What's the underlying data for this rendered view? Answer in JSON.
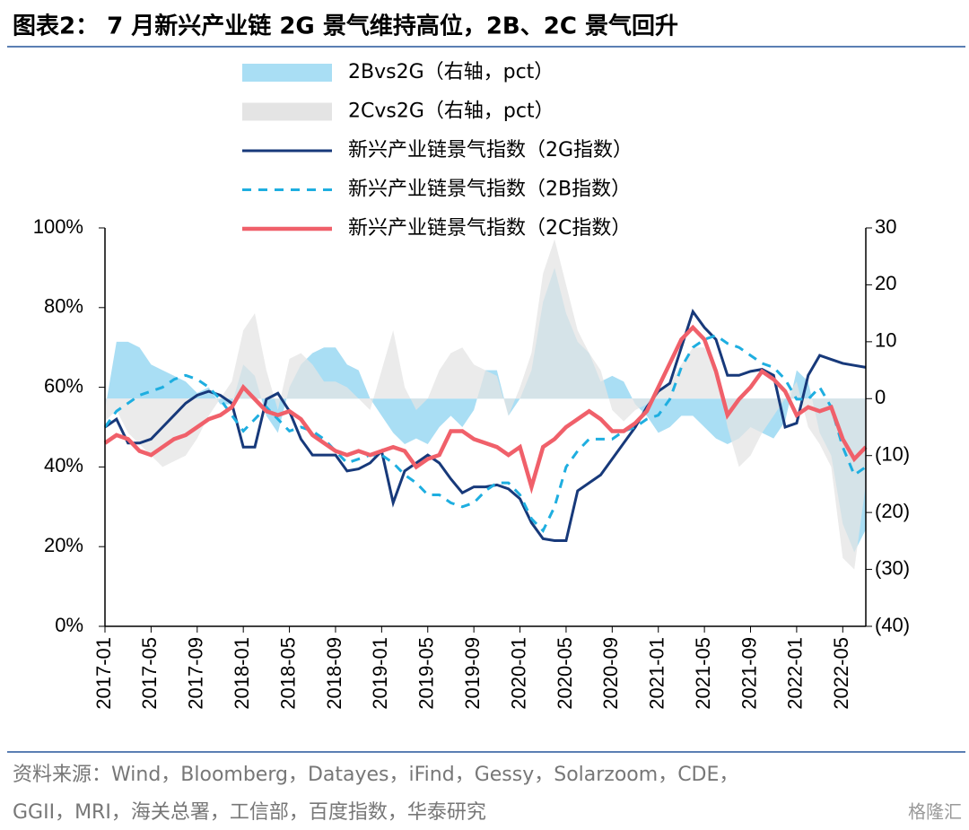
{
  "chart_data": {
    "type": "combo",
    "title": "图表2：  7 月新兴产业链 2G 景气维持高位，2B、2C 景气回升",
    "source": [
      "资料来源：Wind，Bloomberg，Datayes，iFind，Gessy，Solarzoom，CDE，",
      "GGII，MRI，海关总署，工信部，百度指数，华泰研究"
    ],
    "watermark": "格隆汇",
    "categories": [
      "2017-01",
      null,
      null,
      null,
      "2017-05",
      null,
      null,
      null,
      "2017-09",
      null,
      null,
      null,
      "2018-01",
      null,
      null,
      null,
      "2018-05",
      null,
      null,
      null,
      "2018-09",
      null,
      null,
      null,
      "2019-01",
      null,
      null,
      null,
      "2019-05",
      null,
      null,
      null,
      "2019-09",
      null,
      null,
      null,
      "2020-01",
      null,
      null,
      null,
      "2020-05",
      null,
      null,
      null,
      "2020-09",
      null,
      null,
      null,
      "2021-01",
      null,
      null,
      null,
      "2021-05",
      null,
      null,
      null,
      "2021-09",
      null,
      null,
      null,
      "2022-01",
      null,
      null,
      null,
      "2022-05",
      null,
      null
    ],
    "ylim": [
      0,
      100
    ],
    "yticks": [
      {
        "value": 0,
        "label": "0%"
      },
      {
        "value": 20,
        "label": "20%"
      },
      {
        "value": 40,
        "label": "40%"
      },
      {
        "value": 60,
        "label": "60%"
      },
      {
        "value": 80,
        "label": "80%"
      },
      {
        "value": 100,
        "label": "100%"
      }
    ],
    "y2lim": [
      -40,
      30
    ],
    "y2ticks": [
      {
        "value": -40,
        "label": "(40)"
      },
      {
        "value": -30,
        "label": "(30)"
      },
      {
        "value": -20,
        "label": "(20)"
      },
      {
        "value": -10,
        "label": "(10)"
      },
      0,
      10,
      20,
      30
    ],
    "series": [
      {
        "name": "2Bvs2G（右轴，pct）",
        "style": "area",
        "axis": "y2",
        "color": "#a9def4",
        "values": [
          -2,
          10,
          10,
          9,
          6,
          5,
          4,
          3,
          1,
          2,
          -1,
          -1,
          6,
          4,
          -3,
          -6,
          2,
          6,
          8,
          9,
          9,
          6,
          5,
          0,
          -3,
          -6,
          -8,
          -7,
          -8,
          -5,
          -3,
          -5,
          -2,
          5,
          5,
          -3,
          0,
          5,
          17,
          23,
          15,
          10,
          8,
          3,
          4,
          3,
          -1,
          -3,
          -6,
          -5,
          -3,
          -3,
          -5,
          -7,
          -8,
          -7,
          -5,
          -6,
          -7,
          -4,
          5,
          3,
          -6,
          -10,
          -22,
          -27,
          -23
        ]
      },
      {
        "name": "2Cvs2G（右轴，pct）",
        "style": "area",
        "axis": "y2",
        "color": "#e4e4e4",
        "values": [
          -4,
          -2,
          -6,
          -8,
          -10,
          -12,
          -11,
          -10,
          -7,
          -3,
          0,
          3,
          12,
          15,
          5,
          -2,
          7,
          8,
          6,
          3,
          3,
          2,
          0,
          -2,
          5,
          12,
          2,
          -2,
          0,
          5,
          8,
          9,
          6,
          5,
          4,
          -3,
          2,
          8,
          22,
          28,
          20,
          12,
          8,
          5,
          -2,
          -4,
          -2,
          -1,
          1,
          3,
          6,
          9,
          9,
          5,
          -5,
          -12,
          -10,
          -6,
          -3,
          0,
          3,
          -5,
          -8,
          -12,
          -28,
          -30,
          -15
        ]
      },
      {
        "name": "新兴产业链景气指数（2G指数）",
        "style": "line",
        "color": "#17397a",
        "values": [
          50,
          52,
          46,
          46,
          47,
          50,
          53,
          56,
          58,
          59,
          58,
          56,
          45,
          45,
          57,
          58.5,
          54,
          47,
          43,
          43,
          43,
          39,
          39.5,
          41,
          44,
          31,
          39,
          41,
          43,
          41,
          37,
          33.5,
          35,
          35,
          35.5,
          34.5,
          32,
          26,
          22,
          21.5,
          21.5,
          34,
          36,
          38,
          42,
          46,
          50,
          55,
          59,
          61,
          70,
          79,
          75,
          72,
          63,
          63,
          64,
          64.5,
          63,
          50,
          51,
          63,
          68,
          67,
          66,
          65.5,
          65
        ]
      },
      {
        "name": "新兴产业链景气指数（2B指数）",
        "style": "line",
        "dash": true,
        "color": "#1eaee0",
        "values": [
          50,
          54,
          56,
          58,
          59,
          60,
          62,
          63,
          62,
          60,
          57,
          53,
          49,
          52,
          55,
          52,
          49,
          50,
          49,
          47,
          44,
          41,
          42,
          43,
          43,
          41,
          38,
          36,
          33,
          33,
          31,
          30,
          31,
          34,
          36,
          36,
          33,
          27,
          24,
          30,
          40,
          44,
          47,
          47,
          47,
          49,
          50,
          52,
          53,
          57,
          65,
          70,
          72,
          73,
          71,
          70,
          68,
          66,
          65,
          62,
          57,
          57,
          60,
          55,
          45,
          38,
          40
        ]
      },
      {
        "name": "新兴产业链景气指数（2C指数）",
        "style": "line",
        "color": "#f0606a",
        "values": [
          46,
          48,
          47,
          44,
          43,
          45,
          47,
          48,
          50,
          52,
          53,
          55,
          60,
          57,
          54,
          53,
          54,
          52,
          48,
          46,
          44,
          43,
          44,
          43,
          44,
          45,
          44,
          40,
          42,
          43,
          49,
          49,
          47,
          46,
          45,
          43,
          45,
          35,
          45,
          47,
          50,
          52,
          54,
          52,
          49,
          49,
          51,
          54,
          60,
          66,
          72,
          75,
          72,
          64,
          53,
          57,
          60,
          64,
          62,
          59,
          53,
          55,
          54,
          55,
          47,
          42,
          45
        ]
      }
    ]
  }
}
